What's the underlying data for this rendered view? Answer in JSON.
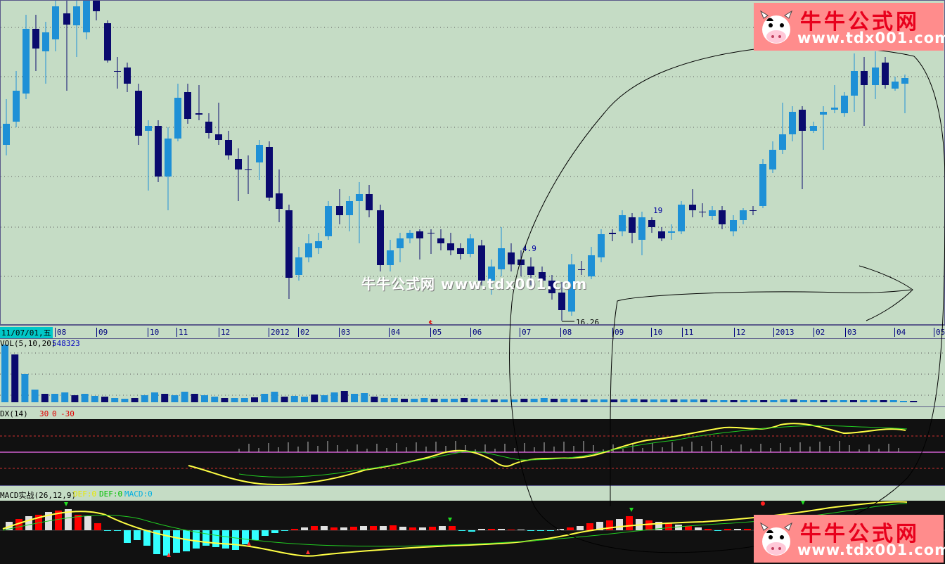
{
  "kline": {
    "labels": [
      {
        "text": "4.9",
        "name": "annotation-4-9"
      },
      {
        "text": "19",
        "name": "annotation-19"
      },
      {
        "text": "16.26",
        "name": "low-price-label"
      },
      {
        "text": "$",
        "name": "dollar-marker"
      }
    ]
  },
  "dates": {
    "first": "11/07/01,五",
    "ticks": [
      "08",
      "09",
      "10",
      "11",
      "12",
      "2012",
      "02",
      "03",
      "04",
      "05",
      "06",
      "07",
      "08",
      "09",
      "10",
      "11",
      "12",
      "2013",
      "02",
      "03",
      "04",
      "05"
    ]
  },
  "vol": {
    "title": "VOL(5,10,20)",
    "value": "548323"
  },
  "dx": {
    "title": "DX(14)",
    "level_high": "30",
    "level_mid": "0",
    "level_low": "-30"
  },
  "macd": {
    "title": "MACD实战(26,12,9)",
    "dif1": "DEF:0",
    "dif2": "DEF:0",
    "macd": "MACD:0"
  },
  "watermark": {
    "title": "牛牛公式网",
    "url": "www.tdx001.com"
  },
  "center_watermark": "牛牛公式网 www.tdx001.com",
  "colors": {
    "up": "#1e90d6",
    "down": "#0a0a6e",
    "bg": "#c5dcc5",
    "red": "#ff0000",
    "cyan": "#33ffff",
    "yellow": "#ffff33"
  }
}
